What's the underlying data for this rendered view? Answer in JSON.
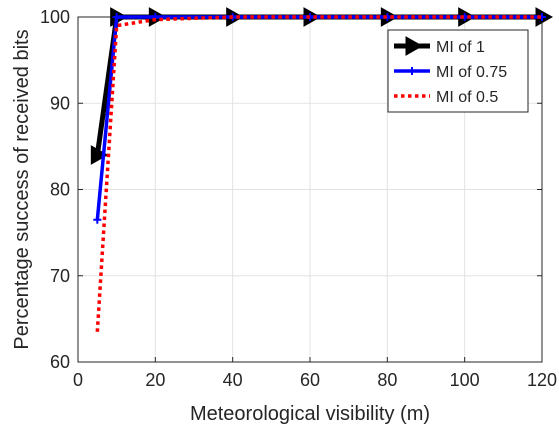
{
  "chart_data": {
    "type": "line",
    "xlabel": "Meteorological visibility (m)",
    "ylabel": "Percentage success of received bits",
    "xlim": [
      0,
      120
    ],
    "ylim": [
      60,
      100
    ],
    "xticks": [
      0,
      20,
      40,
      60,
      80,
      100,
      120
    ],
    "yticks": [
      60,
      70,
      80,
      90,
      100
    ],
    "grid": true,
    "legend_position": "top-right",
    "series": [
      {
        "name": "MI of 1",
        "color": "#000000",
        "style": "solid-arrow",
        "x": [
          5,
          10,
          20,
          40,
          60,
          80,
          100,
          120
        ],
        "y": [
          84,
          100,
          100,
          100,
          100,
          100,
          100,
          100
        ]
      },
      {
        "name": "MI of 0.75",
        "color": "#0000ff",
        "style": "solid-plus",
        "x": [
          5,
          10,
          20,
          40,
          60,
          80,
          100,
          120
        ],
        "y": [
          76.5,
          100,
          100,
          100,
          100,
          100,
          100,
          100
        ]
      },
      {
        "name": "MI of 0.5",
        "color": "#ff0000",
        "style": "dotted",
        "x": [
          5,
          10,
          20,
          40,
          60,
          80,
          100,
          120
        ],
        "y": [
          63.5,
          99,
          99.7,
          100,
          100,
          100,
          100,
          100
        ]
      }
    ]
  }
}
